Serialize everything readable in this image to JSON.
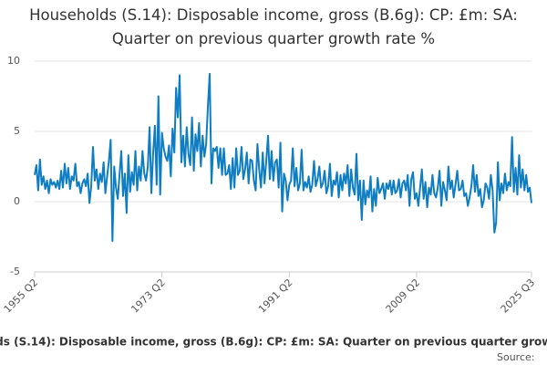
{
  "chart_data": {
    "type": "line",
    "title": "Households (S.14): Disposable income, gross (B.6g): CP: £m: SA: Quarter on previous quarter growth rate %",
    "source": "Source:",
    "categories": [
      "1955 Q2",
      null,
      null,
      null,
      null,
      null,
      null,
      null,
      null,
      null,
      null,
      null,
      null,
      null,
      null,
      null,
      null,
      null,
      null,
      null,
      null,
      null,
      null,
      null,
      null,
      null,
      null,
      null,
      null,
      null,
      null,
      null,
      null,
      null,
      null,
      null,
      null,
      null,
      null,
      null,
      null,
      null,
      null,
      null,
      null,
      null,
      null,
      null,
      null,
      null,
      null,
      null,
      null,
      null,
      null,
      null,
      null,
      null,
      null,
      null,
      null,
      null,
      null,
      null,
      null,
      null,
      null,
      null,
      null,
      null,
      null,
      null,
      "1973 Q2",
      null,
      null,
      null,
      null,
      null,
      null,
      null,
      null,
      null,
      null,
      null,
      null,
      null,
      null,
      null,
      null,
      null,
      null,
      null,
      null,
      null,
      null,
      null,
      null,
      null,
      null,
      null,
      null,
      null,
      null,
      null,
      null,
      null,
      null,
      null,
      null,
      null,
      null,
      null,
      null,
      null,
      null,
      null,
      null,
      null,
      null,
      null,
      null,
      null,
      null,
      null,
      null,
      null,
      null,
      null,
      null,
      null,
      null,
      null,
      null,
      null,
      null,
      null,
      null,
      null,
      null,
      null,
      null,
      null,
      null,
      null,
      "1991 Q2",
      null,
      null,
      null,
      null,
      null,
      null,
      null,
      null,
      null,
      null,
      null,
      null,
      null,
      null,
      null,
      null,
      null,
      null,
      null,
      null,
      null,
      null,
      null,
      null,
      null,
      null,
      null,
      null,
      null,
      null,
      null,
      null,
      null,
      null,
      null,
      null,
      null,
      null,
      null,
      null,
      null,
      null,
      null,
      null,
      null,
      null,
      null,
      null,
      null,
      null,
      null,
      null,
      null,
      null,
      null,
      null,
      null,
      null,
      null,
      null,
      null,
      null,
      null,
      null,
      null,
      null,
      null,
      null,
      null,
      null,
      null,
      "2009 Q2",
      null,
      null,
      null,
      null,
      null,
      null,
      null,
      null,
      null,
      null,
      null,
      null,
      null,
      null,
      null,
      null,
      null,
      null,
      null,
      null,
      null,
      null,
      null,
      null,
      null,
      null,
      null,
      null,
      null,
      null,
      null,
      null,
      null,
      null,
      null,
      null,
      null,
      null,
      null,
      null,
      null,
      null,
      null,
      null,
      null,
      null,
      null,
      null,
      null,
      null,
      null,
      null,
      null,
      null,
      null,
      null,
      null,
      null,
      null,
      null,
      null,
      null,
      null,
      null,
      "2025 Q3"
    ],
    "series": [
      {
        "name": "Households (S.14): Disposable income, gross (B.6g): CP: £m: SA: Quarter on previous quarter growth rate %",
        "color": "#0f7dc2",
        "values": [
          1.9,
          2.6,
          0.8,
          3.0,
          1.2,
          1.8,
          0.9,
          1.5,
          0.6,
          1.6,
          1.2,
          1.4,
          1.0,
          1.5,
          0.9,
          2.2,
          1.0,
          2.7,
          1.3,
          2.4,
          0.9,
          1.8,
          1.5,
          2.7,
          1.1,
          1.4,
          0.6,
          1.3,
          1.6,
          1.1,
          2.0,
          -0.1,
          1.1,
          3.9,
          1.5,
          2.3,
          0.9,
          2.0,
          1.4,
          2.8,
          0.6,
          1.8,
          2.9,
          4.4,
          -2.8,
          2.5,
          1.0,
          0.2,
          1.9,
          3.6,
          0.4,
          2.0,
          -0.8,
          3.3,
          0.7,
          2.1,
          1.2,
          3.6,
          0.8,
          2.5,
          1.5,
          3.6,
          2.0,
          1.5,
          2.5,
          5.3,
          0.6,
          3.4,
          5.4,
          1.2,
          7.5,
          0.5,
          4.9,
          3.8,
          3.2,
          2.9,
          4.0,
          1.8,
          5.2,
          3.5,
          8.1,
          6.0,
          9.0,
          2.8,
          4.7,
          2.5,
          5.3,
          3.4,
          2.6,
          6.0,
          2.2,
          4.8,
          3.6,
          5.6,
          2.5,
          4.7,
          3.2,
          4.1,
          6.8,
          9.1,
          1.3,
          3.8,
          3.6,
          3.9,
          2.4,
          3.8,
          1.9,
          3.8,
          1.9,
          2.0,
          2.6,
          0.9,
          3.1,
          1.0,
          3.8,
          1.9,
          2.2,
          3.9,
          1.6,
          2.3,
          3.5,
          1.3,
          3.0,
          2.9,
          1.5,
          0.8,
          4.1,
          2.3,
          1.0,
          3.5,
          1.3,
          2.9,
          4.7,
          1.6,
          3.6,
          1.5,
          2.8,
          3.0,
          1.0,
          4.2,
          -0.7,
          2.0,
          1.5,
          0.1,
          1.2,
          1.5,
          3.8,
          1.1,
          2.4,
          0.8,
          1.3,
          3.7,
          0.8,
          1.4,
          1.0,
          1.8,
          0.7,
          1.2,
          2.9,
          1.1,
          1.6,
          2.5,
          1.0,
          1.3,
          2.2,
          0.6,
          1.1,
          2.7,
          0.4,
          1.5,
          1.2,
          2.1,
          0.3,
          1.9,
          0.8,
          2.0,
          1.3,
          2.6,
          0.4,
          2.3,
          1.0,
          0.5,
          3.4,
          0.1,
          1.5,
          -1.3,
          1.5,
          -0.2,
          0.8,
          0.3,
          1.8,
          -0.7,
          0.9,
          -0.3,
          1.7,
          0.6,
          0.9,
          1.3,
          0.2,
          1.3,
          0.9,
          1.5,
          0.5,
          1.5,
          0.6,
          0.8,
          1.6,
          0.3,
          1.3,
          1.5,
          0.8,
          1.9,
          -0.3,
          1.6,
          2.1,
          0.2,
          0.6,
          -0.3,
          1.0,
          2.3,
          0.2,
          1.4,
          -0.4,
          1.0,
          0.5,
          1.9,
          0.6,
          0.3,
          1.0,
          2.2,
          -0.3,
          1.4,
          0.8,
          0.1,
          2.5,
          0.9,
          1.5,
          0.3,
          1.2,
          2.2,
          0.8,
          0.9,
          1.5,
          0.4,
          0.6,
          -0.3,
          0.3,
          1.1,
          2.6,
          0.7,
          1.9,
          0.4,
          0.9,
          -0.4,
          0.1,
          1.3,
          1.0,
          0.2,
          1.9,
          0.8,
          -2.2,
          -1.5,
          2.8,
          0.1,
          1.3,
          0.6,
          2.0,
          0.8,
          1.4,
          1.1,
          4.6,
          0.7,
          2.4,
          0.5,
          3.3,
          1.0,
          2.3,
          0.8,
          1.9,
          0.7,
          1.0,
          -0.1
        ]
      }
    ],
    "ylim": [
      -5,
      10
    ],
    "yticks": [
      -5,
      0,
      5,
      10
    ],
    "grid": true
  }
}
